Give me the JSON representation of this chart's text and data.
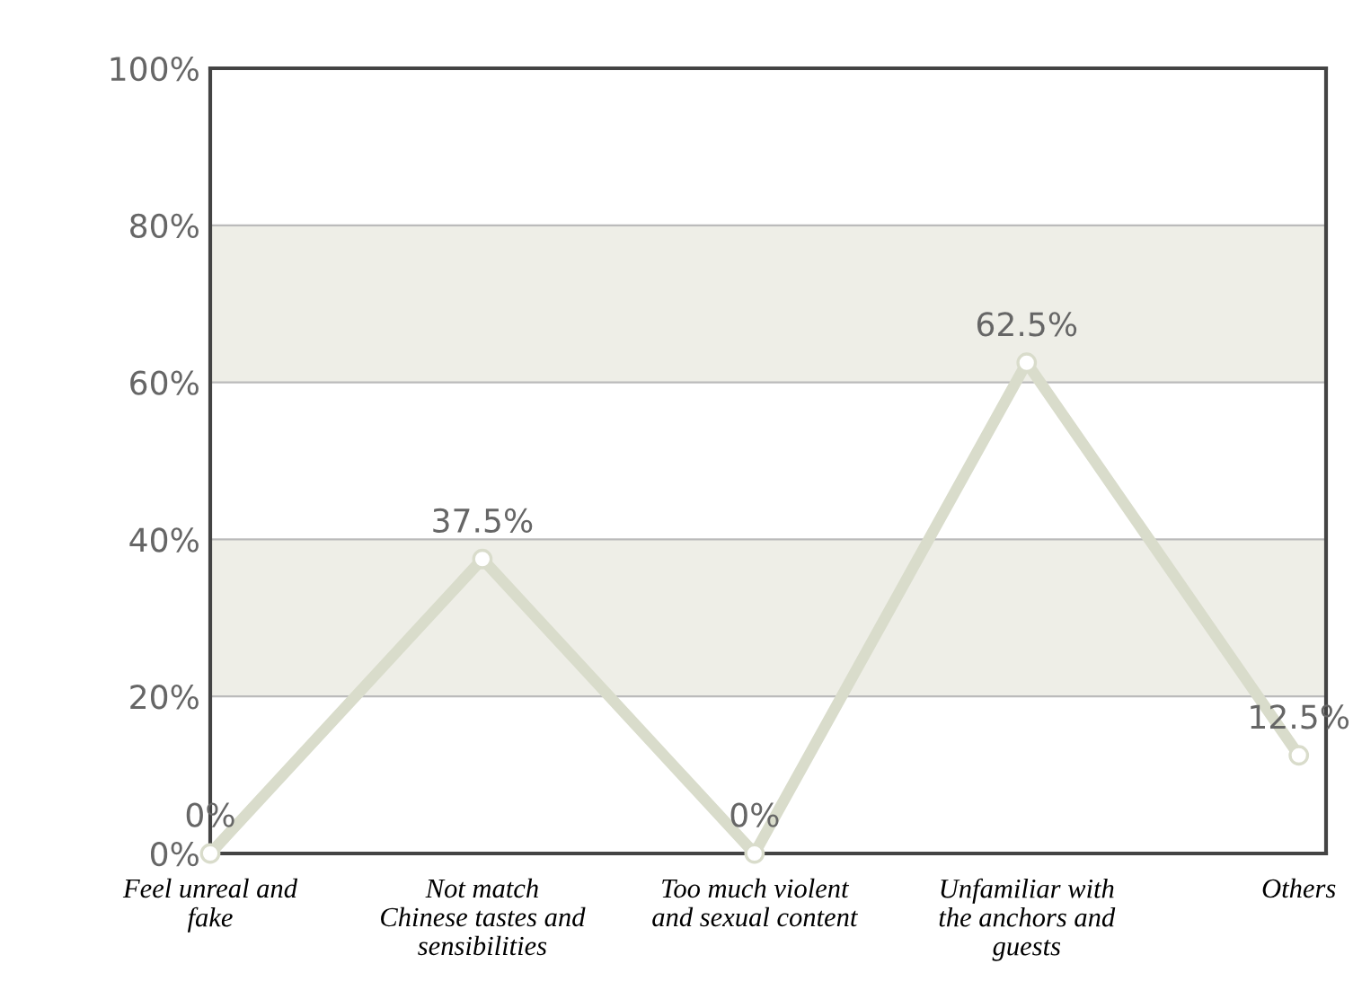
{
  "chart_data": {
    "type": "line",
    "categories": [
      "Feel unreal and\nfake",
      "Not match\nChinese tastes and\nsensibilities",
      "Too much violent\nand sexual content",
      "Unfamiliar with\nthe anchors and\nguests",
      "Others"
    ],
    "series": [
      {
        "color": "#d9dccb",
        "values": [
          0,
          37.5,
          0,
          62.5,
          12.5
        ]
      }
    ],
    "value_labels": [
      "0%",
      "37.5%",
      "0%",
      "62.5%",
      "12.5%"
    ],
    "ylim": [
      0,
      100
    ],
    "yticks": [
      {
        "value": 0,
        "label": "0%"
      },
      {
        "value": 20,
        "label": "20%"
      },
      {
        "value": 40,
        "label": "40%"
      },
      {
        "value": 60,
        "label": "60%"
      },
      {
        "value": 80,
        "label": "80%"
      },
      {
        "value": 100,
        "label": "100%"
      }
    ],
    "bands": [
      {
        "axis": "y",
        "from": 20,
        "to": 40,
        "color": "#eeeee7"
      },
      {
        "axis": "y",
        "from": 60,
        "to": 80,
        "color": "#eeeee7"
      }
    ],
    "grid": "y",
    "marker": "circle",
    "line_style": "solid",
    "legend": false
  }
}
